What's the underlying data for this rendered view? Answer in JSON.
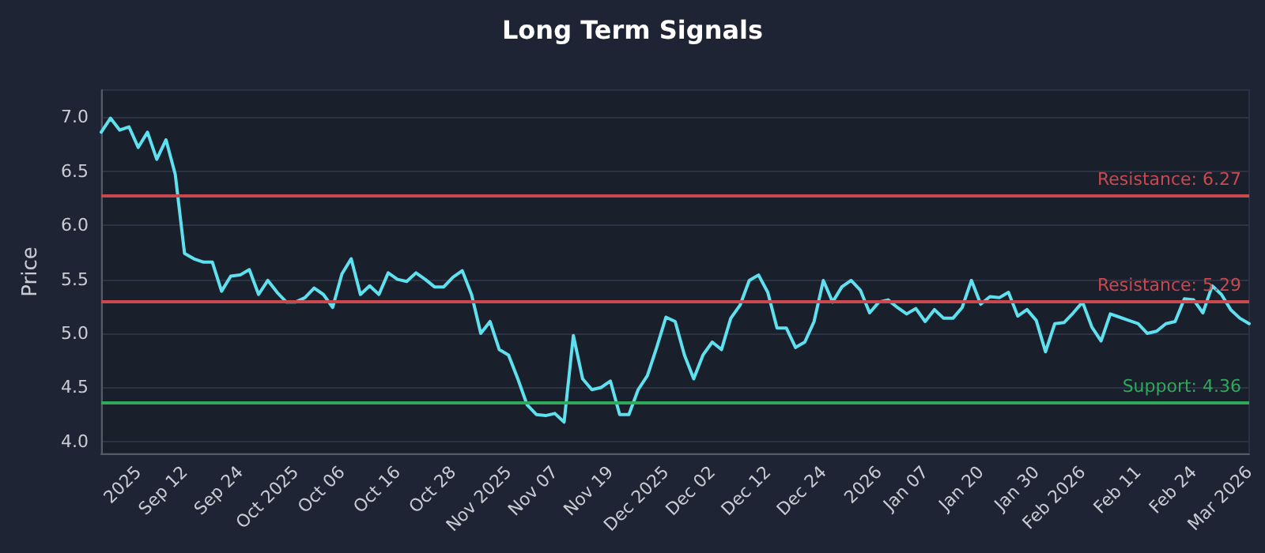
{
  "chart_data": {
    "type": "line",
    "title": "Long Term Signals",
    "ylabel": "Price",
    "categories": [
      null,
      null,
      null,
      null,
      "2025",
      null,
      null,
      null,
      null,
      "Sep 12",
      null,
      null,
      null,
      null,
      null,
      "Sep 24",
      null,
      null,
      null,
      null,
      null,
      "Oct 2025",
      null,
      null,
      null,
      null,
      "Oct 06",
      null,
      null,
      null,
      null,
      null,
      "Oct 16",
      null,
      null,
      null,
      null,
      null,
      "Oct 28",
      null,
      null,
      null,
      null,
      null,
      "Nov 2025",
      null,
      null,
      null,
      null,
      "Nov 07",
      null,
      null,
      null,
      null,
      null,
      "Nov 19",
      null,
      null,
      null,
      null,
      null,
      "Dec 2025",
      null,
      null,
      null,
      null,
      "Dec 02",
      null,
      null,
      null,
      null,
      null,
      "Dec 12",
      null,
      null,
      null,
      null,
      null,
      "Dec 24",
      null,
      null,
      null,
      null,
      null,
      "2026",
      null,
      null,
      null,
      null,
      "Jan 07",
      null,
      null,
      null,
      null,
      null,
      "Jan 20",
      null,
      null,
      null,
      null,
      null,
      "Jan 30",
      null,
      null,
      null,
      null,
      "Feb 2026",
      null,
      null,
      null,
      null,
      null,
      "Feb 11",
      null,
      null,
      null,
      null,
      null,
      "Feb 24",
      null,
      null,
      null,
      null,
      null,
      "Mar 2026"
    ],
    "series": [
      {
        "color": "#5fe0ef",
        "values": [
          6.86,
          6.99,
          6.88,
          6.91,
          6.72,
          6.86,
          6.61,
          6.79,
          6.47,
          5.74,
          5.69,
          5.66,
          5.66,
          5.39,
          5.53,
          5.54,
          5.59,
          5.36,
          5.49,
          5.38,
          5.29,
          5.29,
          5.33,
          5.42,
          5.36,
          5.24,
          5.55,
          5.69,
          5.36,
          5.44,
          5.36,
          5.56,
          5.5,
          5.48,
          5.56,
          5.5,
          5.43,
          5.43,
          5.52,
          5.58,
          5.36,
          5.0,
          5.11,
          4.85,
          4.8,
          4.58,
          4.34,
          4.25,
          4.24,
          4.26,
          4.18,
          4.98,
          4.58,
          4.48,
          4.5,
          4.56,
          4.25,
          4.25,
          4.48,
          4.61,
          4.87,
          5.15,
          5.11,
          4.8,
          4.58,
          4.8,
          4.92,
          4.85,
          5.14,
          5.26,
          5.49,
          5.54,
          5.38,
          5.05,
          5.05,
          4.87,
          4.92,
          5.11,
          5.49,
          5.29,
          5.43,
          5.49,
          5.4,
          5.19,
          5.29,
          5.31,
          5.24,
          5.18,
          5.23,
          5.11,
          5.22,
          5.14,
          5.14,
          5.24,
          5.49,
          5.27,
          5.34,
          5.33,
          5.38,
          5.16,
          5.22,
          5.12,
          4.83,
          5.09,
          5.1,
          5.19,
          5.29,
          5.06,
          4.93,
          5.18,
          5.15,
          5.12,
          5.09,
          5.0,
          5.02,
          5.09,
          5.11,
          5.32,
          5.31,
          5.19,
          5.44,
          5.36,
          5.22,
          5.14,
          5.09
        ]
      }
    ],
    "ylim": [
      3.89,
      7.25
    ],
    "yticks": [
      {
        "value": 4,
        "label": "4.0"
      },
      {
        "value": 4.5,
        "label": "4.5"
      },
      {
        "value": 5,
        "label": "5.0"
      },
      {
        "value": 5.5,
        "label": "5.5"
      },
      {
        "value": 6,
        "label": "6.0"
      },
      {
        "value": 6.5,
        "label": "6.5"
      },
      {
        "value": 7,
        "label": "7.0"
      }
    ],
    "ref_lines": [
      {
        "axis": "y",
        "value": 6.27,
        "label": "Resistance: 6.27",
        "color": "#c9494f"
      },
      {
        "axis": "y",
        "value": 5.29,
        "label": "Resistance: 5.29",
        "color": "#c9494f"
      },
      {
        "axis": "y",
        "value": 4.36,
        "label": "Support: 4.36",
        "color": "#2fa85a"
      }
    ],
    "grid": "y",
    "marker": "none",
    "line_style": "solid"
  }
}
